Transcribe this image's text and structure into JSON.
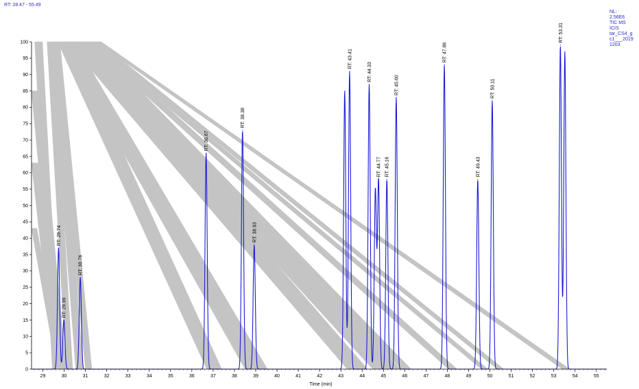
{
  "header": {
    "rt_range": "RT: 28.47 - 55.49",
    "info_lines": [
      "NL:",
      "2.56E6",
      "TIC  MS",
      "ICIS",
      "tar_CS4_g",
      "c1___2019",
      "1203"
    ]
  },
  "colors": {
    "trace": "#1a1ad6",
    "bands": "#c4c4c4",
    "axis": "#000000",
    "header_text": "#2a2ad0"
  },
  "chart_data": {
    "type": "line",
    "title": "",
    "xlabel": "Time (min)",
    "ylabel": "",
    "xlim": [
      28.47,
      55.49
    ],
    "ylim": [
      0,
      100
    ],
    "x_ticks": [
      29,
      30,
      31,
      32,
      33,
      34,
      35,
      36,
      37,
      38,
      39,
      40,
      41,
      42,
      43,
      44,
      45,
      46,
      47,
      48,
      49,
      50,
      51,
      52,
      53,
      54,
      55
    ],
    "y_ticks": [
      0,
      5,
      10,
      15,
      20,
      25,
      30,
      35,
      40,
      45,
      50,
      55,
      60,
      65,
      70,
      75,
      80,
      85,
      90,
      95,
      100
    ],
    "grid": false,
    "legend": "none",
    "peaks": [
      {
        "rt": 29.74,
        "intensity": 37,
        "label": "RT: 29.74"
      },
      {
        "rt": 29.99,
        "intensity": 15,
        "label": "RT: 29.99"
      },
      {
        "rt": 30.76,
        "intensity": 28,
        "label": "RT: 30.76"
      },
      {
        "rt": 36.67,
        "intensity": 66,
        "label": "RT: 36.67"
      },
      {
        "rt": 38.38,
        "intensity": 73,
        "label": "RT: 38.38"
      },
      {
        "rt": 38.93,
        "intensity": 38,
        "label": "RT: 38.93"
      },
      {
        "rt": 43.18,
        "intensity": 85,
        "label": ""
      },
      {
        "rt": 43.41,
        "intensity": 91,
        "label": "RT: 43.41"
      },
      {
        "rt": 44.33,
        "intensity": 87,
        "label": "RT: 44.33"
      },
      {
        "rt": 44.62,
        "intensity": 55,
        "label": ""
      },
      {
        "rt": 44.77,
        "intensity": 58,
        "label": "RT: 44.77"
      },
      {
        "rt": 45.16,
        "intensity": 58,
        "label": "RT: 45.16"
      },
      {
        "rt": 45.6,
        "intensity": 83,
        "label": "RT: 45.60"
      },
      {
        "rt": 47.86,
        "intensity": 93,
        "label": "RT: 47.86"
      },
      {
        "rt": 49.43,
        "intensity": 58,
        "label": "RT: 49.43"
      },
      {
        "rt": 50.11,
        "intensity": 82,
        "label": "RT: 50.11"
      },
      {
        "rt": 53.31,
        "intensity": 99,
        "label": "RT: 53.31"
      },
      {
        "rt": 53.52,
        "intensity": 97,
        "label": ""
      }
    ],
    "bands": [
      {
        "from": [
          28.62,
          100
        ],
        "to": [
          29.45,
          0
        ],
        "width": 0.36
      },
      {
        "from": [
          28.47,
          85
        ],
        "to": [
          29.7,
          0
        ],
        "width": 0.4
      },
      {
        "from": [
          28.47,
          63
        ],
        "to": [
          29.55,
          0
        ],
        "width": 0.3
      },
      {
        "from": [
          28.47,
          43
        ],
        "to": [
          29.65,
          0
        ],
        "width": 0.25
      },
      {
        "from": [
          29.2,
          100
        ],
        "to": [
          30.1,
          0
        ],
        "width": 0.3
      },
      {
        "from": [
          29.35,
          100
        ],
        "to": [
          30.55,
          0
        ],
        "width": 0.35
      },
      {
        "from": [
          29.5,
          100
        ],
        "to": [
          31.0,
          0
        ],
        "width": 0.3
      },
      {
        "from": [
          29.7,
          100
        ],
        "to": [
          36.7,
          0
        ],
        "width": 0.7
      },
      {
        "from": [
          29.85,
          100
        ],
        "to": [
          38.5,
          0
        ],
        "width": 0.6
      },
      {
        "from": [
          30.0,
          100
        ],
        "to": [
          39.05,
          0
        ],
        "width": 0.5
      },
      {
        "from": [
          30.15,
          100
        ],
        "to": [
          43.3,
          0
        ],
        "width": 0.6
      },
      {
        "from": [
          30.3,
          100
        ],
        "to": [
          43.65,
          0
        ],
        "width": 0.6
      },
      {
        "from": [
          30.45,
          100
        ],
        "to": [
          44.5,
          0
        ],
        "width": 0.5
      },
      {
        "from": [
          30.6,
          100
        ],
        "to": [
          44.9,
          0
        ],
        "width": 0.5
      },
      {
        "from": [
          30.75,
          100
        ],
        "to": [
          45.3,
          0
        ],
        "width": 0.5
      },
      {
        "from": [
          30.9,
          100
        ],
        "to": [
          45.85,
          0
        ],
        "width": 0.45
      },
      {
        "from": [
          31.05,
          100
        ],
        "to": [
          48.05,
          0
        ],
        "width": 0.4
      },
      {
        "from": [
          31.2,
          100
        ],
        "to": [
          49.6,
          0
        ],
        "width": 0.3
      },
      {
        "from": [
          31.35,
          100
        ],
        "to": [
          50.35,
          0
        ],
        "width": 0.3
      },
      {
        "from": [
          31.5,
          100
        ],
        "to": [
          53.4,
          0
        ],
        "width": 0.2
      },
      {
        "from": [
          31.6,
          100
        ],
        "to": [
          53.6,
          0
        ],
        "width": 0.15
      }
    ]
  }
}
